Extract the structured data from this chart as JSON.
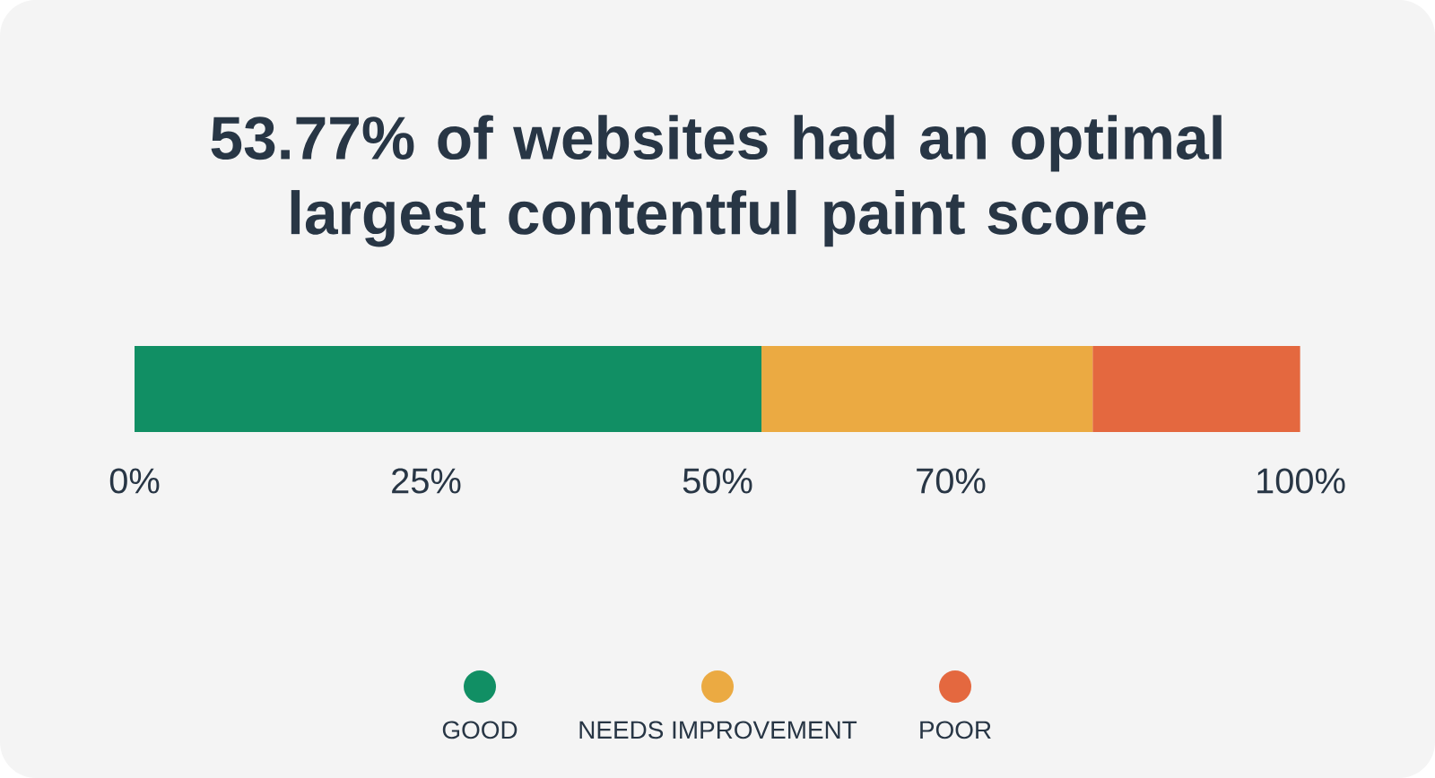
{
  "chart_data": {
    "type": "bar",
    "orientation": "horizontal",
    "stacked": true,
    "title": "53.77% of websites had an optimal largest contentful paint score",
    "categories": [
      null
    ],
    "series": [
      {
        "name": "GOOD",
        "color": "#118f64",
        "values": [
          53.77
        ]
      },
      {
        "name": "NEEDS IMPROVEMENT",
        "color": "#ebaa42",
        "values": [
          28.4
        ]
      },
      {
        "name": "POOR",
        "color": "#e4683f",
        "values": [
          17.8
        ]
      }
    ],
    "xlim": [
      0,
      100
    ],
    "xticks": [
      {
        "value": 0,
        "label": "0%"
      },
      {
        "value": 25,
        "label": "25%"
      },
      {
        "value": 50,
        "label": "50%"
      },
      {
        "value": 70,
        "label": "70%"
      },
      {
        "value": 100,
        "label": "100%"
      }
    ],
    "legend": "bottom"
  }
}
